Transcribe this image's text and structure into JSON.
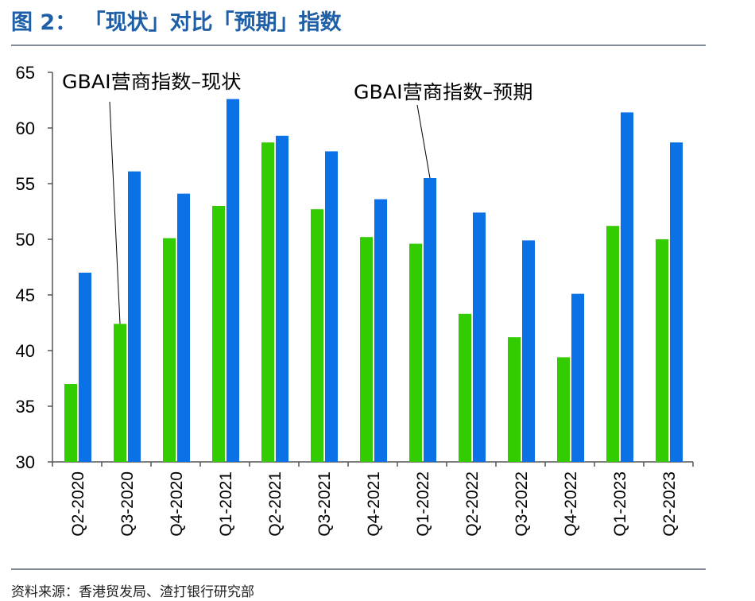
{
  "title": "图 2： 「现状」对比「预期」指数",
  "source": "资料来源：香港贸发局、渣打银行研究部",
  "chart_data": {
    "type": "bar",
    "title": "「现状」对比「预期」指数",
    "xlabel": "",
    "ylabel": "",
    "ylim": [
      30,
      65
    ],
    "yticks": [
      30,
      35,
      40,
      45,
      50,
      55,
      60,
      65
    ],
    "grid": false,
    "categories": [
      "Q2-2020",
      "Q3-2020",
      "Q4-2020",
      "Q1-2021",
      "Q2-2021",
      "Q3-2021",
      "Q4-2021",
      "Q1-2022",
      "Q2-2022",
      "Q3-2022",
      "Q4-2022",
      "Q1-2023",
      "Q2-2023"
    ],
    "series": [
      {
        "name": "GBAI营商指数–现状",
        "color": "#33cc00",
        "values": [
          37.0,
          42.4,
          50.1,
          53.0,
          58.7,
          52.7,
          50.2,
          49.6,
          43.3,
          41.2,
          39.4,
          51.2,
          50.0
        ]
      },
      {
        "name": "GBAI营商指数–预期",
        "color": "#0a72e6",
        "values": [
          47.0,
          56.1,
          54.1,
          62.6,
          59.3,
          57.9,
          53.6,
          55.5,
          52.4,
          49.9,
          45.1,
          61.4,
          58.7
        ]
      }
    ],
    "annotations": [
      {
        "text": "GBAI营商指数–现状",
        "series": 0,
        "category": "Q3-2020"
      },
      {
        "text": "GBAI营商指数–预期",
        "series": 1,
        "category": "Q1-2022"
      }
    ]
  }
}
